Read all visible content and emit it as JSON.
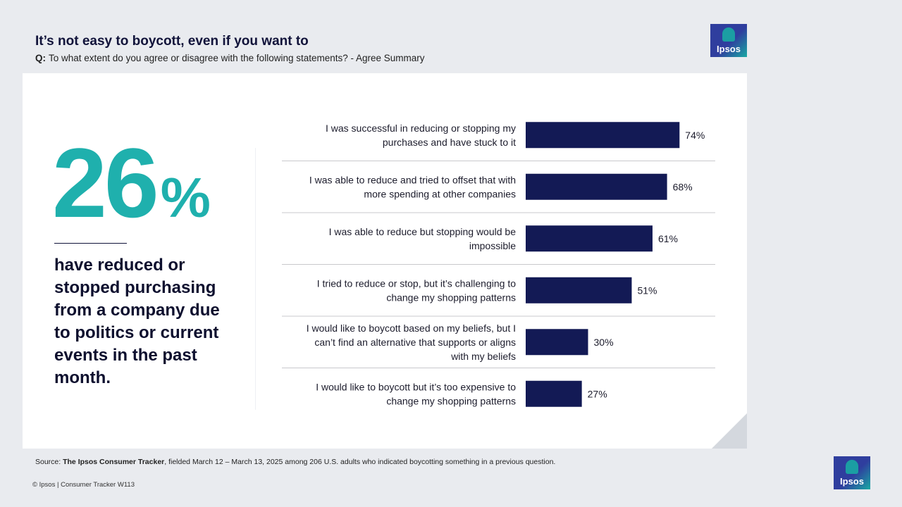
{
  "header": {
    "title": "It’s not easy to boycott, even if you want to",
    "question_prefix": "Q:",
    "question_text": "To what extent do you agree or disagree with the following statements? - Agree Summary"
  },
  "brand": {
    "logo_text": "Ipsos",
    "accent_color": "#1fb0ad",
    "bar_color": "#131a55"
  },
  "highlight": {
    "number": "26",
    "unit": "%",
    "description": "have reduced or stopped purchasing from a company due to politics or current events in the past month."
  },
  "chart_data": {
    "type": "bar",
    "orientation": "horizontal",
    "categories": [
      "I was successful in reducing or stopping my purchases and have stuck to it",
      "I was able to reduce and tried to offset that with more spending at other companies",
      "I was able to reduce but stopping would be impossible",
      "I tried to reduce or stop, but it’s challenging to change my shopping patterns",
      "I would like to boycott based on my beliefs, but I can’t find an alternative that supports or aligns with my beliefs",
      "I would like to boycott but it’s too expensive to change my shopping patterns"
    ],
    "category_lines": [
      [
        "I was successful in reducing or stopping my",
        "purchases and have stuck to it"
      ],
      [
        "I was able to reduce and tried to offset that with",
        "more spending at other companies"
      ],
      [
        "I was able to reduce but stopping would be",
        "impossible"
      ],
      [
        "I tried to reduce or stop, but it’s challenging to",
        "change my shopping patterns"
      ],
      [
        "I would like to boycott based on my beliefs, but I",
        "can’t find an alternative that supports or aligns",
        "with my beliefs"
      ],
      [
        "I would like to boycott but it’s too expensive to",
        "change my shopping patterns"
      ]
    ],
    "values": [
      74,
      68,
      61,
      51,
      30,
      27
    ],
    "value_labels": [
      "74%",
      "68%",
      "61%",
      "51%",
      "30%",
      "27%"
    ],
    "xlim": [
      0,
      100
    ]
  },
  "footer": {
    "source_prefix": "Source:",
    "source_name": "The Ipsos Consumer Tracker",
    "source_rest": ", fielded March 12 – March 13, 2025 among 206 U.S. adults who indicated boycotting something in a previous question.",
    "copyright": "© Ipsos | Consumer Tracker W113"
  }
}
